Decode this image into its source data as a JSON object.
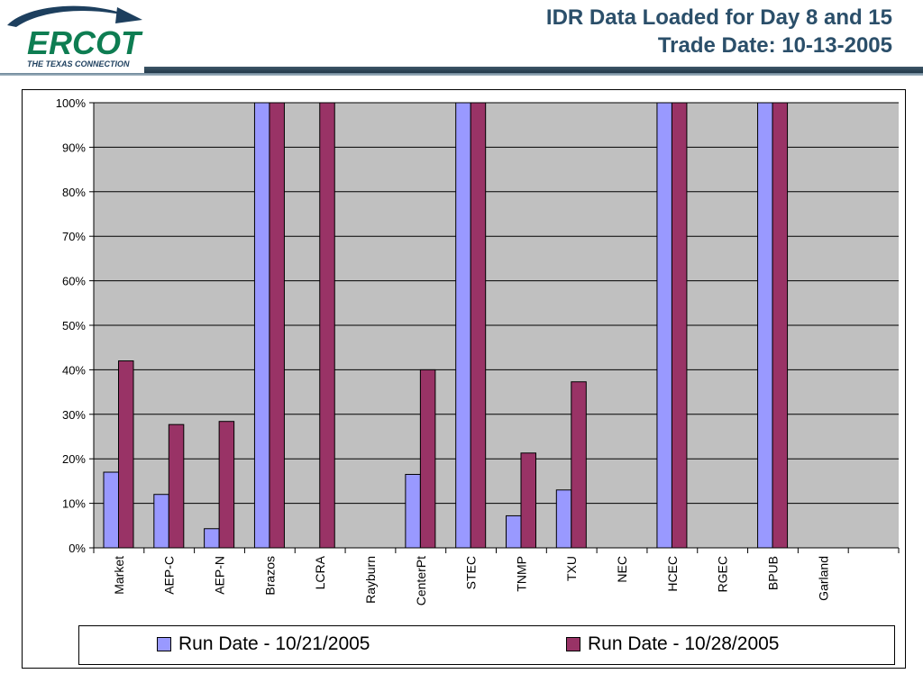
{
  "header": {
    "title_line1": "IDR Data Loaded for Day 8 and 15",
    "title_line2": "Trade Date: 10-13-2005",
    "logo_text": "ERCOT",
    "logo_tagline": "THE TEXAS CONNECTION"
  },
  "colors": {
    "series1": "#9999ff",
    "series2": "#993366",
    "plot_bg": "#c0c0c0",
    "title": "#2b4f6a"
  },
  "chart_data": {
    "type": "bar",
    "title": "",
    "xlabel": "",
    "ylabel": "",
    "ylim": [
      0,
      100
    ],
    "y_ticks": [
      "0%",
      "10%",
      "20%",
      "30%",
      "40%",
      "50%",
      "60%",
      "70%",
      "80%",
      "90%",
      "100%"
    ],
    "grid": true,
    "legend_position": "bottom",
    "categories": [
      "Market",
      "AEP-C",
      "AEP-N",
      "Brazos",
      "LCRA",
      "Rayburn",
      "CenterPt",
      "STEC",
      "TNMP",
      "TXU",
      "NEC",
      "HCEC",
      "RGEC",
      "BPUB",
      "Garland"
    ],
    "series": [
      {
        "name": "Run Date - 10/21/2005",
        "values": [
          17,
          12,
          4.3,
          100,
          0,
          0,
          16.5,
          100,
          7.2,
          13,
          0,
          100,
          0,
          100,
          0
        ]
      },
      {
        "name": "Run Date - 10/28/2005",
        "values": [
          42,
          27.7,
          28.4,
          100,
          100,
          0,
          40,
          100,
          21.3,
          37.3,
          0,
          100,
          0,
          100,
          0
        ]
      }
    ]
  }
}
